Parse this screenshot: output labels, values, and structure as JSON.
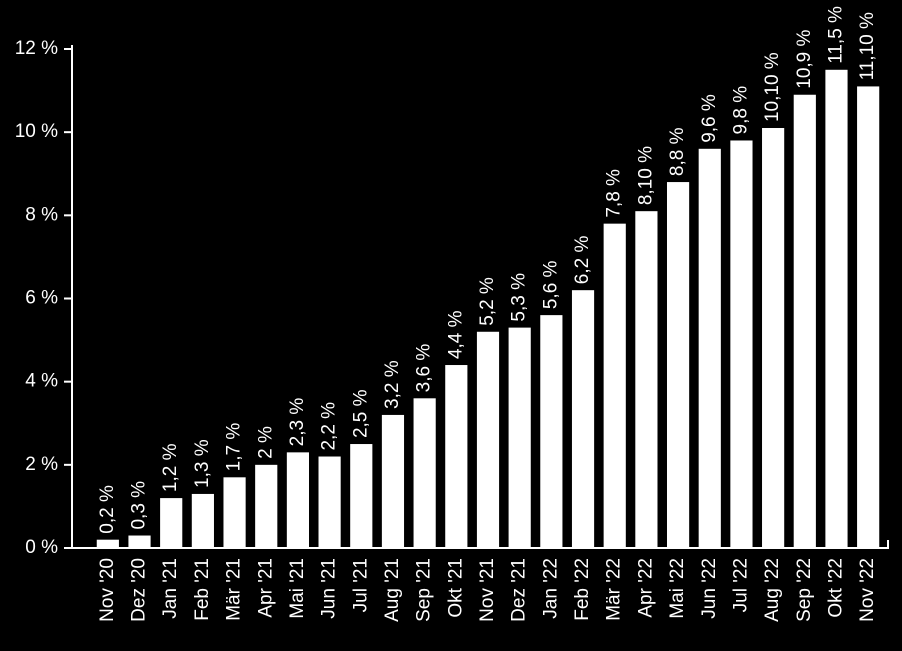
{
  "chart_data": {
    "type": "bar",
    "categories": [
      "Nov '20",
      "Dez '20",
      "Jan '21",
      "Feb '21",
      "Mär '21",
      "Apr '21",
      "Mai '21",
      "Jun '21",
      "Jul '21",
      "Aug '21",
      "Sep '21",
      "Okt '21",
      "Nov '21",
      "Dez '21",
      "Jan '22",
      "Feb '22",
      "Mär '22",
      "Apr '22",
      "Mai '22",
      "Jun '22",
      "Jul '22",
      "Aug '22",
      "Sep '22",
      "Okt '22",
      "Nov '22"
    ],
    "values": [
      0.2,
      0.3,
      1.2,
      1.3,
      1.7,
      2,
      2.3,
      2.2,
      2.5,
      3.2,
      3.6,
      4.4,
      5.2,
      5.3,
      5.6,
      6.2,
      7.8,
      8.1,
      8.8,
      9.6,
      9.8,
      10.1,
      10.9,
      11.5,
      11.1
    ],
    "value_labels": [
      "0,2 %",
      "0,3 %",
      "1,2 %",
      "1,3 %",
      "1,7 %",
      "2 %",
      "2,3 %",
      "2,2 %",
      "2,5 %",
      "3,2 %",
      "3,6 %",
      "4,4 %",
      "5,2 %",
      "5,3 %",
      "5,6 %",
      "6,2 %",
      "7,8 %",
      "8,10 %",
      "8,8 %",
      "9,6 %",
      "9,8 %",
      "10,10 %",
      "10,9 %",
      "11,5 %",
      "11,10 %"
    ],
    "color": "#ffffff",
    "ylim": [
      0,
      12
    ],
    "yticks": [
      {
        "value": 0,
        "label": "0 %"
      },
      {
        "value": 2,
        "label": "2 %"
      },
      {
        "value": 4,
        "label": "4 %"
      },
      {
        "value": 6,
        "label": "6 %"
      },
      {
        "value": 8,
        "label": "8 %"
      },
      {
        "value": 10,
        "label": "10 %"
      },
      {
        "value": 12,
        "label": "12 %"
      }
    ],
    "grid": false
  }
}
